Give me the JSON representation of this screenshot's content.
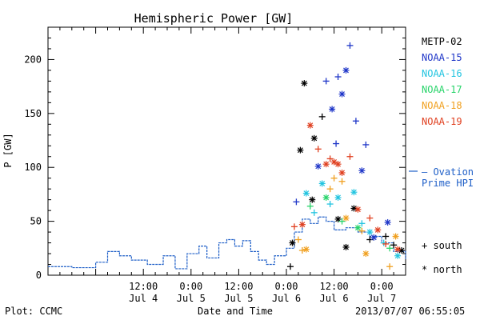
{
  "chart_data": {
    "type": "scatter",
    "title": "Hemispheric Power [GW]",
    "xlabel": "Date and Time",
    "ylabel": "P [GW]",
    "ylim": [
      0,
      230
    ],
    "yticks": [
      0,
      50,
      100,
      150,
      200
    ],
    "xlim": [
      "2013-07-03 12:00",
      "2013-07-07 06:00"
    ],
    "xticks": [
      {
        "t": "2013-07-04 12:00",
        "time": "12:00",
        "date": "Jul 4"
      },
      {
        "t": "2013-07-05 00:00",
        "time": "0:00",
        "date": "Jul 5"
      },
      {
        "t": "2013-07-05 12:00",
        "time": "12:00",
        "date": "Jul 5"
      },
      {
        "t": "2013-07-06 00:00",
        "time": "0:00",
        "date": "Jul 6"
      },
      {
        "t": "2013-07-06 12:00",
        "time": "12:00",
        "date": "Jul 6"
      },
      {
        "t": "2013-07-07 00:00",
        "time": "0:00",
        "date": "Jul 7"
      }
    ],
    "line_series": {
      "labels": [
        "— Ovation",
        "Prime HPI"
      ],
      "color": "#2060c8",
      "points": [
        [
          "2013-07-03 12:00",
          8
        ],
        [
          "2013-07-03 18:00",
          7
        ],
        [
          "2013-07-04 00:00",
          12
        ],
        [
          "2013-07-04 03:00",
          22
        ],
        [
          "2013-07-04 06:00",
          18
        ],
        [
          "2013-07-04 09:00",
          14
        ],
        [
          "2013-07-04 13:00",
          10
        ],
        [
          "2013-07-04 17:00",
          18
        ],
        [
          "2013-07-04 20:00",
          6
        ],
        [
          "2013-07-04 23:00",
          20
        ],
        [
          "2013-07-05 02:00",
          27
        ],
        [
          "2013-07-05 04:00",
          16
        ],
        [
          "2013-07-05 07:00",
          30
        ],
        [
          "2013-07-05 09:00",
          33
        ],
        [
          "2013-07-05 11:00",
          27
        ],
        [
          "2013-07-05 13:00",
          32
        ],
        [
          "2013-07-05 15:00",
          22
        ],
        [
          "2013-07-05 17:00",
          14
        ],
        [
          "2013-07-05 19:00",
          10
        ],
        [
          "2013-07-05 21:00",
          18
        ],
        [
          "2013-07-06 00:00",
          25
        ],
        [
          "2013-07-06 02:00",
          40
        ],
        [
          "2013-07-06 04:00",
          52
        ],
        [
          "2013-07-06 06:00",
          48
        ],
        [
          "2013-07-06 08:00",
          54
        ],
        [
          "2013-07-06 10:00",
          50
        ],
        [
          "2013-07-06 12:00",
          42
        ],
        [
          "2013-07-06 15:00",
          44
        ],
        [
          "2013-07-06 18:00",
          40
        ],
        [
          "2013-07-06 21:00",
          36
        ],
        [
          "2013-07-07 00:00",
          30
        ],
        [
          "2013-07-07 03:00",
          22
        ],
        [
          "2013-07-07 06:00",
          15
        ]
      ]
    },
    "scatter_series": [
      {
        "name": "METP-02",
        "color": "#000000",
        "points": [
          [
            "2013-07-06 01:00",
            8,
            "south"
          ],
          [
            "2013-07-06 01:30",
            30,
            "north"
          ],
          [
            "2013-07-06 03:30",
            116,
            "north"
          ],
          [
            "2013-07-06 04:30",
            178,
            "north"
          ],
          [
            "2013-07-06 07:00",
            127,
            "north"
          ],
          [
            "2013-07-06 09:00",
            147,
            "south"
          ],
          [
            "2013-07-06 06:30",
            70,
            "north"
          ],
          [
            "2013-07-06 13:00",
            52,
            "north"
          ],
          [
            "2013-07-06 15:00",
            26,
            "north"
          ],
          [
            "2013-07-06 17:00",
            62,
            "north"
          ],
          [
            "2013-07-06 21:00",
            33,
            "south"
          ],
          [
            "2013-07-07 01:00",
            36,
            "south"
          ],
          [
            "2013-07-07 03:00",
            28,
            "south"
          ],
          [
            "2013-07-07 05:00",
            23,
            "north"
          ]
        ]
      },
      {
        "name": "NOAA-15",
        "color": "#1f36c8",
        "points": [
          [
            "2013-07-06 08:00",
            101,
            "north"
          ],
          [
            "2013-07-06 10:00",
            180,
            "south"
          ],
          [
            "2013-07-06 11:30",
            154,
            "north"
          ],
          [
            "2013-07-06 13:00",
            184,
            "south"
          ],
          [
            "2013-07-06 15:00",
            190,
            "north"
          ],
          [
            "2013-07-06 14:00",
            168,
            "north"
          ],
          [
            "2013-07-06 16:00",
            213,
            "south"
          ],
          [
            "2013-07-06 17:30",
            143,
            "south"
          ],
          [
            "2013-07-06 20:00",
            121,
            "south"
          ],
          [
            "2013-07-06 19:00",
            97,
            "north"
          ],
          [
            "2013-07-06 12:30",
            122,
            "south"
          ],
          [
            "2013-07-06 02:30",
            68,
            "south"
          ],
          [
            "2013-07-07 01:30",
            49,
            "north"
          ],
          [
            "2013-07-06 22:00",
            35,
            "north"
          ]
        ]
      },
      {
        "name": "NOAA-16",
        "color": "#22c4e0",
        "points": [
          [
            "2013-07-06 05:00",
            76,
            "north"
          ],
          [
            "2013-07-06 07:00",
            58,
            "south"
          ],
          [
            "2013-07-06 09:00",
            85,
            "north"
          ],
          [
            "2013-07-06 11:00",
            66,
            "south"
          ],
          [
            "2013-07-06 13:00",
            72,
            "north"
          ],
          [
            "2013-07-06 17:00",
            77,
            "north"
          ],
          [
            "2013-07-06 19:00",
            48,
            "south"
          ],
          [
            "2013-07-06 21:00",
            40,
            "north"
          ],
          [
            "2013-07-07 00:30",
            30,
            "south"
          ],
          [
            "2013-07-07 04:00",
            18,
            "north"
          ]
        ]
      },
      {
        "name": "NOAA-17",
        "color": "#28d46a",
        "points": [
          [
            "2013-07-06 06:00",
            64,
            "south"
          ],
          [
            "2013-07-06 10:00",
            72,
            "north"
          ],
          [
            "2013-07-06 14:00",
            50,
            "south"
          ],
          [
            "2013-07-06 18:00",
            44,
            "north"
          ],
          [
            "2013-07-07 02:00",
            25,
            "south"
          ]
        ]
      },
      {
        "name": "NOAA-18",
        "color": "#f0a020",
        "points": [
          [
            "2013-07-06 03:00",
            33,
            "south"
          ],
          [
            "2013-07-06 04:00",
            23,
            "south"
          ],
          [
            "2013-07-06 05:00",
            24,
            "north"
          ],
          [
            "2013-07-06 11:00",
            80,
            "south"
          ],
          [
            "2013-07-06 12:00",
            90,
            "south"
          ],
          [
            "2013-07-06 14:00",
            87,
            "south"
          ],
          [
            "2013-07-06 15:00",
            53,
            "north"
          ],
          [
            "2013-07-06 19:00",
            41,
            "south"
          ],
          [
            "2013-07-06 20:00",
            20,
            "north"
          ],
          [
            "2013-07-07 02:00",
            8,
            "south"
          ],
          [
            "2013-07-07 03:30",
            36,
            "north"
          ]
        ]
      },
      {
        "name": "NOAA-19",
        "color": "#e04020",
        "points": [
          [
            "2013-07-06 02:00",
            45,
            "south"
          ],
          [
            "2013-07-06 04:00",
            47,
            "north"
          ],
          [
            "2013-07-06 06:00",
            139,
            "north"
          ],
          [
            "2013-07-06 08:00",
            117,
            "south"
          ],
          [
            "2013-07-06 10:00",
            103,
            "north"
          ],
          [
            "2013-07-06 11:00",
            108,
            "south"
          ],
          [
            "2013-07-06 12:00",
            105,
            "north"
          ],
          [
            "2013-07-06 13:00",
            103,
            "north"
          ],
          [
            "2013-07-06 14:00",
            95,
            "north"
          ],
          [
            "2013-07-06 16:00",
            110,
            "south"
          ],
          [
            "2013-07-06 18:00",
            61,
            "north"
          ],
          [
            "2013-07-06 21:00",
            53,
            "south"
          ],
          [
            "2013-07-06 23:00",
            42,
            "north"
          ],
          [
            "2013-07-07 01:00",
            29,
            "south"
          ],
          [
            "2013-07-07 04:00",
            24,
            "north"
          ]
        ]
      }
    ],
    "marker_legend": {
      "south": "+ south",
      "north": "* north"
    }
  },
  "footer": {
    "left": "Plot: CCMC",
    "right": "2013/07/07 06:55:05"
  }
}
